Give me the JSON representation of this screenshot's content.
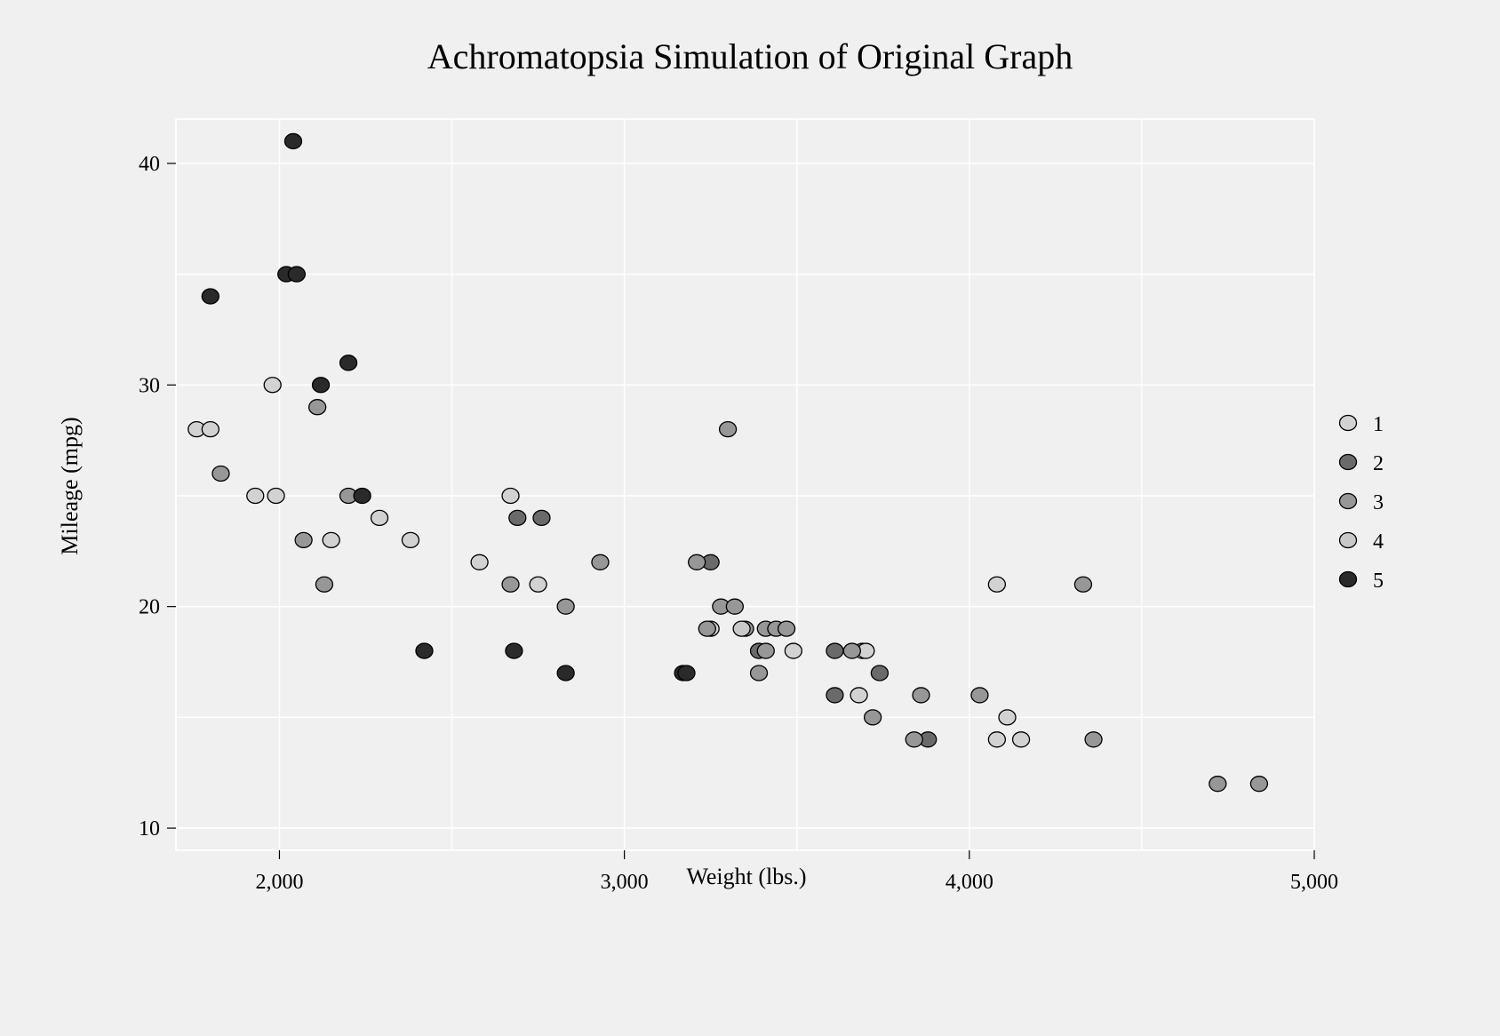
{
  "chart_data": {
    "type": "scatter",
    "title": "Achromatopsia Simulation of Original Graph",
    "xlabel": "Weight (lbs.)",
    "ylabel": "Mileage (mpg)",
    "xlim": [
      1700,
      5000
    ],
    "ylim": [
      9,
      42
    ],
    "xticks": [
      2000,
      3000,
      4000,
      5000
    ],
    "xtick_labels": [
      "2,000",
      "3,000",
      "4,000",
      "5,000"
    ],
    "yticks": [
      10,
      20,
      30,
      40
    ],
    "ytick_labels": [
      "10",
      "20",
      "30",
      "40"
    ],
    "grid": true,
    "legend_position": "right",
    "colors": {
      "background": "#f0f0f0",
      "grid": "#ffffff",
      "1": "#d2d2d2",
      "2": "#6a6a6a",
      "3": "#979797",
      "4": "#c8c8c8",
      "5": "#2a2a2a"
    },
    "series": [
      {
        "name": "1",
        "points": [
          [
            1760,
            28
          ],
          [
            1800,
            28
          ],
          [
            1980,
            30
          ],
          [
            1930,
            25
          ],
          [
            1990,
            25
          ],
          [
            2290,
            24
          ],
          [
            2380,
            23
          ],
          [
            2150,
            23
          ],
          [
            2580,
            22
          ],
          [
            2670,
            25
          ],
          [
            2750,
            21
          ],
          [
            3250,
            19
          ],
          [
            3490,
            18
          ],
          [
            3690,
            18
          ],
          [
            3700,
            18
          ],
          [
            3680,
            16
          ],
          [
            4080,
            21
          ],
          [
            4110,
            15
          ],
          [
            4080,
            14
          ],
          [
            4150,
            14
          ]
        ]
      },
      {
        "name": "2",
        "points": [
          [
            2690,
            24
          ],
          [
            2760,
            24
          ],
          [
            3250,
            22
          ],
          [
            3390,
            18
          ],
          [
            3610,
            18
          ],
          [
            3610,
            16
          ],
          [
            3740,
            17
          ],
          [
            3880,
            14
          ]
        ]
      },
      {
        "name": "3",
        "points": [
          [
            1830,
            26
          ],
          [
            2110,
            29
          ],
          [
            2070,
            23
          ],
          [
            2130,
            21
          ],
          [
            2200,
            25
          ],
          [
            2670,
            21
          ],
          [
            2830,
            20
          ],
          [
            2930,
            22
          ],
          [
            3210,
            22
          ],
          [
            3300,
            28
          ],
          [
            3280,
            20
          ],
          [
            3320,
            20
          ],
          [
            3240,
            19
          ],
          [
            3350,
            19
          ],
          [
            3410,
            19
          ],
          [
            3440,
            19
          ],
          [
            3470,
            19
          ],
          [
            3410,
            18
          ],
          [
            3390,
            17
          ],
          [
            3660,
            18
          ],
          [
            3720,
            15
          ],
          [
            3840,
            14
          ],
          [
            3860,
            16
          ],
          [
            4030,
            16
          ],
          [
            4330,
            21
          ],
          [
            4360,
            14
          ],
          [
            4720,
            12
          ],
          [
            4840,
            12
          ]
        ]
      },
      {
        "name": "4",
        "points": [
          [
            3340,
            19
          ]
        ]
      },
      {
        "name": "5",
        "points": [
          [
            2040,
            41
          ],
          [
            2020,
            35
          ],
          [
            2050,
            35
          ],
          [
            1800,
            34
          ],
          [
            2120,
            30
          ],
          [
            2200,
            31
          ],
          [
            2240,
            25
          ],
          [
            2420,
            18
          ],
          [
            2680,
            18
          ],
          [
            2830,
            17
          ],
          [
            3170,
            17
          ],
          [
            3180,
            17
          ]
        ]
      }
    ]
  }
}
